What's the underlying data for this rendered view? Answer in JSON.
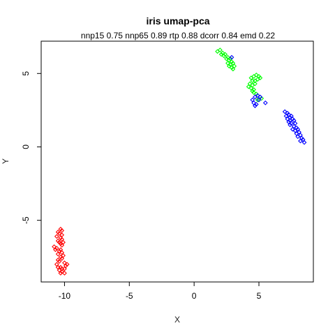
{
  "chart_data": {
    "type": "scatter",
    "title": "iris umap-pca",
    "subtitle": "nnp15 0.75 nnp65 0.89 rtp 0.88 dcorr 0.84 emd 0.22",
    "xlabel": "X",
    "ylabel": "Y",
    "xlim": [
      -11.8,
      9.2
    ],
    "ylim": [
      -9.2,
      7.2
    ],
    "x_ticks": [
      -10,
      -5,
      0,
      5
    ],
    "y_ticks": [
      -5,
      0,
      5
    ],
    "grid": false,
    "legend": "none",
    "marker": "open-diamond",
    "series": [
      {
        "color": "#ff0000",
        "points": [
          [
            -10.3,
            -5.6
          ],
          [
            -10.2,
            -5.7
          ],
          [
            -10.5,
            -5.8
          ],
          [
            -10.4,
            -5.9
          ],
          [
            -10.2,
            -6.0
          ],
          [
            -10.6,
            -6.1
          ],
          [
            -10.3,
            -6.2
          ],
          [
            -10.2,
            -6.3
          ],
          [
            -10.5,
            -6.4
          ],
          [
            -10.1,
            -6.5
          ],
          [
            -10.4,
            -6.5
          ],
          [
            -10.3,
            -6.6
          ],
          [
            -10.2,
            -6.7
          ],
          [
            -10.8,
            -6.8
          ],
          [
            -10.6,
            -6.9
          ],
          [
            -10.7,
            -7.0
          ],
          [
            -10.3,
            -7.0
          ],
          [
            -10.4,
            -7.1
          ],
          [
            -10.2,
            -7.2
          ],
          [
            -10.5,
            -7.3
          ],
          [
            -10.1,
            -7.4
          ],
          [
            -10.3,
            -7.5
          ],
          [
            -10.2,
            -7.6
          ],
          [
            -10.5,
            -7.7
          ],
          [
            -10.4,
            -7.8
          ],
          [
            -10.0,
            -7.9
          ],
          [
            -10.6,
            -8.0
          ],
          [
            -9.8,
            -8.0
          ],
          [
            -9.9,
            -8.1
          ],
          [
            -10.5,
            -8.2
          ],
          [
            -10.3,
            -8.2
          ],
          [
            -10.2,
            -8.3
          ],
          [
            -10.0,
            -8.3
          ],
          [
            -10.4,
            -8.4
          ],
          [
            -10.2,
            -8.5
          ],
          [
            -10.3,
            -8.6
          ],
          [
            -10.0,
            -8.6
          ]
        ]
      },
      {
        "color": "#00ff00",
        "points": [
          [
            1.8,
            6.5
          ],
          [
            2.0,
            6.6
          ],
          [
            2.2,
            6.4
          ],
          [
            2.1,
            6.3
          ],
          [
            2.4,
            6.3
          ],
          [
            2.3,
            6.2
          ],
          [
            2.6,
            6.1
          ],
          [
            2.5,
            6.0
          ],
          [
            2.8,
            6.0
          ],
          [
            2.7,
            5.9
          ],
          [
            2.9,
            5.8
          ],
          [
            2.6,
            5.7
          ],
          [
            3.0,
            5.7
          ],
          [
            2.8,
            5.6
          ],
          [
            3.1,
            5.5
          ],
          [
            2.9,
            5.4
          ],
          [
            3.0,
            5.3
          ],
          [
            2.7,
            5.5
          ],
          [
            4.6,
            4.8
          ],
          [
            4.8,
            4.9
          ],
          [
            5.0,
            4.8
          ],
          [
            5.1,
            4.7
          ],
          [
            4.4,
            4.7
          ],
          [
            4.5,
            4.5
          ],
          [
            4.7,
            4.5
          ],
          [
            4.9,
            4.6
          ],
          [
            4.3,
            4.3
          ],
          [
            4.5,
            4.2
          ],
          [
            4.7,
            4.3
          ],
          [
            4.4,
            4.0
          ],
          [
            4.6,
            3.9
          ],
          [
            4.2,
            4.1
          ],
          [
            4.5,
            3.8
          ],
          [
            4.8,
            3.6
          ],
          [
            4.6,
            3.7
          ],
          [
            5.2,
            3.3
          ],
          [
            4.9,
            3.2
          ]
        ]
      },
      {
        "color": "#0000ff",
        "points": [
          [
            2.9,
            6.1
          ],
          [
            4.9,
            3.5
          ],
          [
            5.1,
            3.4
          ],
          [
            4.7,
            3.4
          ],
          [
            4.5,
            3.2
          ],
          [
            5.0,
            3.2
          ],
          [
            4.6,
            3.0
          ],
          [
            4.8,
            2.9
          ],
          [
            5.5,
            3.0
          ],
          [
            4.7,
            2.8
          ],
          [
            7.0,
            2.4
          ],
          [
            7.2,
            2.3
          ],
          [
            7.3,
            2.2
          ],
          [
            7.1,
            2.1
          ],
          [
            7.5,
            2.1
          ],
          [
            7.4,
            2.0
          ],
          [
            7.2,
            1.9
          ],
          [
            7.6,
            1.9
          ],
          [
            7.4,
            1.8
          ],
          [
            7.7,
            1.8
          ],
          [
            7.3,
            1.7
          ],
          [
            7.5,
            1.6
          ],
          [
            7.8,
            1.6
          ],
          [
            7.4,
            1.5
          ],
          [
            7.7,
            1.4
          ],
          [
            7.9,
            1.3
          ],
          [
            7.6,
            1.2
          ],
          [
            8.0,
            1.2
          ],
          [
            7.8,
            1.1
          ],
          [
            8.1,
            1.0
          ],
          [
            7.9,
            0.9
          ],
          [
            8.2,
            0.8
          ],
          [
            8.0,
            0.7
          ],
          [
            8.3,
            0.6
          ],
          [
            8.4,
            0.5
          ],
          [
            8.2,
            0.4
          ],
          [
            8.5,
            0.3
          ]
        ]
      }
    ]
  }
}
